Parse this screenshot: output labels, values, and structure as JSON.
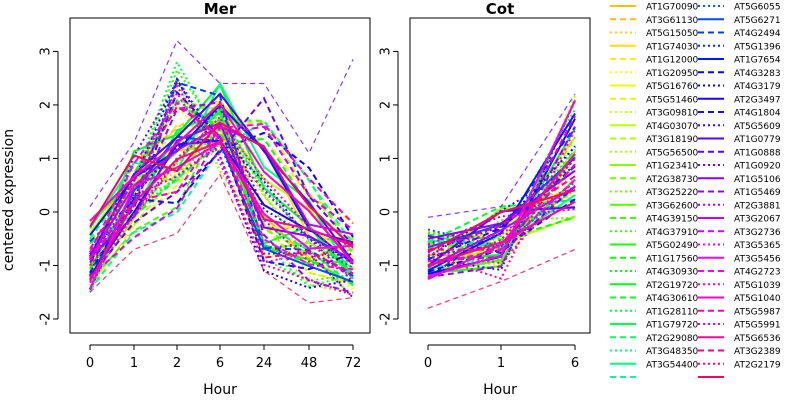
{
  "chart_data": {
    "type": "line",
    "ylabel": "centered expression",
    "ylim": [
      -2.0,
      3.4
    ],
    "yticks": [
      "-2",
      "-1",
      "0",
      "1",
      "2",
      "3"
    ],
    "legend_position": "right (outside plot)",
    "panels": [
      {
        "title": "Mer",
        "xlabel": "Hour",
        "categories": [
          "0",
          "1",
          "2",
          "6",
          "24",
          "48",
          "72"
        ],
        "envelope": {
          "min": [
            -1.5,
            -0.7,
            -0.4,
            0.7,
            -1.1,
            -1.7,
            -1.6
          ],
          "max": [
            0.1,
            1.3,
            3.2,
            2.4,
            2.4,
            1.1,
            2.85
          ]
        }
      },
      {
        "title": "Cot",
        "xlabel": "Hour",
        "categories": [
          "0",
          "1",
          "6"
        ],
        "envelope": {
          "min": [
            -1.8,
            -1.3,
            -0.7
          ],
          "max": [
            -0.1,
            0.1,
            2.2
          ]
        }
      }
    ],
    "legend": [
      {
        "name": "AT1G70090",
        "color": "#FFC000",
        "dash": "solid"
      },
      {
        "name": "AT3G61130",
        "color": "#FFC000",
        "dash": "dashed"
      },
      {
        "name": "AT5G15050",
        "color": "#FFD200",
        "dash": "dotted"
      },
      {
        "name": "AT1G74030",
        "color": "#FFE000",
        "dash": "solid"
      },
      {
        "name": "AT1G12000",
        "color": "#FFEF00",
        "dash": "dashed"
      },
      {
        "name": "AT1G20950",
        "color": "#F5FF00",
        "dash": "dotted"
      },
      {
        "name": "AT5G16760",
        "color": "#E8FF00",
        "dash": "solid"
      },
      {
        "name": "AT5G51460",
        "color": "#DAFF00",
        "dash": "dashed"
      },
      {
        "name": "AT3G09810",
        "color": "#CCFF00",
        "dash": "dotted"
      },
      {
        "name": "AT4G03070",
        "color": "#BDFF00",
        "dash": "solid"
      },
      {
        "name": "AT3G18190",
        "color": "#AEFF00",
        "dash": "dashed"
      },
      {
        "name": "AT5G56500",
        "color": "#9EFF00",
        "dash": "dotted"
      },
      {
        "name": "AT1G23410",
        "color": "#8CFF00",
        "dash": "solid"
      },
      {
        "name": "AT2G38730",
        "color": "#7AFF00",
        "dash": "dashed"
      },
      {
        "name": "AT3G25220",
        "color": "#68FF00",
        "dash": "dotted"
      },
      {
        "name": "AT3G62600",
        "color": "#55FF00",
        "dash": "solid"
      },
      {
        "name": "AT4G39150",
        "color": "#42FF00",
        "dash": "dashed"
      },
      {
        "name": "AT4G37910",
        "color": "#30FF00",
        "dash": "dotted"
      },
      {
        "name": "AT5G02490",
        "color": "#1EFF00",
        "dash": "solid"
      },
      {
        "name": "AT1G17560",
        "color": "#0CFF00",
        "dash": "dashed"
      },
      {
        "name": "AT4G30930",
        "color": "#00FF08",
        "dash": "dotted"
      },
      {
        "name": "AT2G19720",
        "color": "#00FF1A",
        "dash": "solid"
      },
      {
        "name": "AT4G30610",
        "color": "#00FF2C",
        "dash": "dashed"
      },
      {
        "name": "AT1G28110",
        "color": "#00FF3E",
        "dash": "dotted"
      },
      {
        "name": "AT1G79720",
        "color": "#00FF50",
        "dash": "solid"
      },
      {
        "name": "AT2G29080",
        "color": "#00FF62",
        "dash": "dashed"
      },
      {
        "name": "AT3G48350",
        "color": "#00FF74",
        "dash": "dotted"
      },
      {
        "name": "AT3G54400",
        "color": "#00FF86",
        "dash": "solid"
      },
      {
        "name": "",
        "color": "#00FF98",
        "dash": "dashed"
      },
      {
        "name": "AT5G6055",
        "color": "#0060FF",
        "dash": "dotted"
      },
      {
        "name": "AT5G6271",
        "color": "#004EFF",
        "dash": "solid"
      },
      {
        "name": "AT4G2494",
        "color": "#003CFF",
        "dash": "dashed"
      },
      {
        "name": "AT5G1396",
        "color": "#002AFF",
        "dash": "dotted"
      },
      {
        "name": "AT1G7654",
        "color": "#0018FF",
        "dash": "solid"
      },
      {
        "name": "AT4G3283",
        "color": "#0006FF",
        "dash": "dashed"
      },
      {
        "name": "AT4G3179",
        "color": "#0C00FF",
        "dash": "dotted"
      },
      {
        "name": "AT2G3497",
        "color": "#1E00FF",
        "dash": "solid"
      },
      {
        "name": "AT4G1804",
        "color": "#3000FF",
        "dash": "dashed"
      },
      {
        "name": "AT5G5609",
        "color": "#4200FF",
        "dash": "dotted"
      },
      {
        "name": "AT1G0779",
        "color": "#5400FF",
        "dash": "solid"
      },
      {
        "name": "AT1G0888",
        "color": "#6600FF",
        "dash": "dashed"
      },
      {
        "name": "AT1G0920",
        "color": "#7800FF",
        "dash": "dotted"
      },
      {
        "name": "AT1G5106",
        "color": "#8A00FF",
        "dash": "solid"
      },
      {
        "name": "AT1G5469",
        "color": "#9C00FF",
        "dash": "dashed"
      },
      {
        "name": "AT2G3881",
        "color": "#AE00FF",
        "dash": "dotted"
      },
      {
        "name": "AT3G2067",
        "color": "#C000FF",
        "dash": "solid"
      },
      {
        "name": "AT3G2736",
        "color": "#D200FF",
        "dash": "dashed"
      },
      {
        "name": "AT3G5365",
        "color": "#E400FF",
        "dash": "dotted"
      },
      {
        "name": "AT3G5456",
        "color": "#F600FF",
        "dash": "solid"
      },
      {
        "name": "AT4G2723",
        "color": "#FF00F6",
        "dash": "dashed"
      },
      {
        "name": "AT5G1039",
        "color": "#FF00E4",
        "dash": "dotted"
      },
      {
        "name": "AT5G1040",
        "color": "#FF00D2",
        "dash": "solid"
      },
      {
        "name": "AT5G5987",
        "color": "#FF00C0",
        "dash": "dashed"
      },
      {
        "name": "AT5G5991",
        "color": "#FF00AE",
        "dash": "dotted"
      },
      {
        "name": "AT5G6536",
        "color": "#FF009C",
        "dash": "solid"
      },
      {
        "name": "AT3G2389",
        "color": "#FF008A",
        "dash": "dashed"
      },
      {
        "name": "AT2G2179",
        "color": "#FF0078",
        "dash": "dotted"
      },
      {
        "name": "",
        "color": "#FF0066",
        "dash": "solid"
      }
    ]
  }
}
